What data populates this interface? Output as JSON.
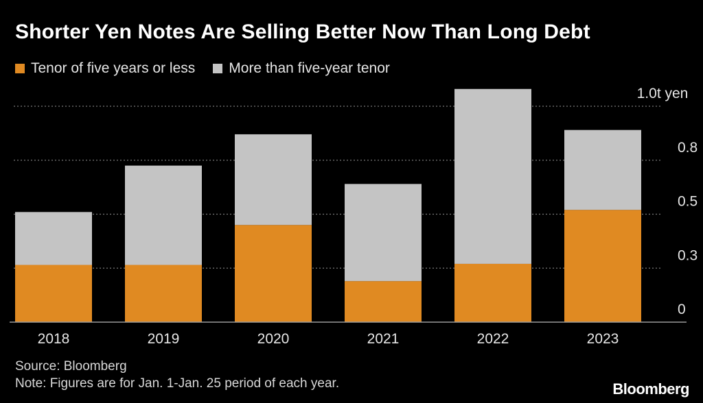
{
  "title": "Shorter Yen Notes Are Selling Better Now Than Long Debt",
  "legend": [
    {
      "label": "Tenor of five years or less",
      "color": "#e08a22"
    },
    {
      "label": "More than five-year tenor",
      "color": "#c4c4c4"
    }
  ],
  "footer": {
    "source": "Source: Bloomberg",
    "note": "Note: Figures are for Jan. 1-Jan. 25 period of each year."
  },
  "brand": "Bloomberg",
  "chart_data": {
    "type": "bar",
    "stacked": true,
    "title": "Shorter Yen Notes Are Selling Better Now Than Long Debt",
    "categories": [
      "2018",
      "2019",
      "2020",
      "2021",
      "2022",
      "2023"
    ],
    "series": [
      {
        "name": "Tenor of five years or less",
        "color": "#e08a22",
        "values": [
          0.265,
          0.265,
          0.45,
          0.19,
          0.27,
          0.52
        ]
      },
      {
        "name": "More than five-year tenor",
        "color": "#c4c4c4",
        "values": [
          0.245,
          0.46,
          0.42,
          0.45,
          0.81,
          0.37
        ]
      }
    ],
    "yticks": [
      {
        "value": 0,
        "label": "0"
      },
      {
        "value": 0.25,
        "label": "0.3"
      },
      {
        "value": 0.5,
        "label": "0.5"
      },
      {
        "value": 0.75,
        "label": "0.8"
      },
      {
        "value": 1.0,
        "label": "1.0t yen"
      }
    ],
    "ylim": [
      0,
      1.0
    ],
    "xlabel": "",
    "ylabel": "",
    "grid": true
  }
}
